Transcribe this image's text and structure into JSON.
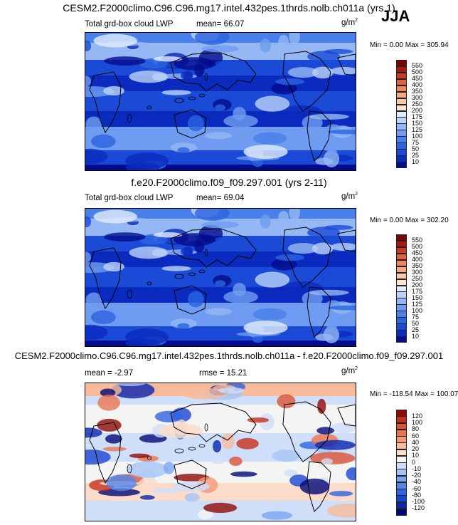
{
  "season": "JJA",
  "panels": [
    {
      "title": "CESM2.F2000climo.C96.C96.mg17.intel.432pes.1thrds.nolb.ch011a (yrs 1)",
      "field_label": "Total grd-box cloud LWP",
      "stat_text": "mean=  66.07",
      "stat2_text": "",
      "units": "g/m",
      "units_exp": "2",
      "minmax": "Min =   0.00 Max = 305.94"
    },
    {
      "title": "f.e20.F2000climo.f09_f09.297.001 (yrs 2-11)",
      "field_label": "Total grd-box cloud LWP",
      "stat_text": "mean=  69.04",
      "stat2_text": "",
      "units": "g/m",
      "units_exp": "2",
      "minmax": "Min =   0.00 Max = 302.20"
    },
    {
      "title": "CESM2.F2000climo.C96.C96.mg17.intel.432pes.1thrds.nolb.ch011a - f.e20.F2000climo.f09_f09.297.001",
      "field_label": "",
      "stat_text": "mean =  -2.97",
      "stat2_text": "rmse =  15.21",
      "units": "g/m",
      "units_exp": "2",
      "minmax": "Min = -118.54 Max = 100.07"
    }
  ],
  "chart_data": [
    {
      "type": "heatmap",
      "title": "CESM2.F2000climo.C96.C96.mg17.intel.432pes.1thrds.nolb.ch011a (yrs 1)",
      "variable": "Total grd-box cloud LWP",
      "units": "g/m2",
      "mean": 66.07,
      "min": 0.0,
      "max": 305.94,
      "colorbar_levels": [
        10,
        25,
        50,
        75,
        100,
        125,
        150,
        175,
        200,
        250,
        300,
        350,
        400,
        450,
        500,
        550
      ],
      "colorbar_colors": [
        "#040b8c",
        "#0a2bbd",
        "#1a4ad6",
        "#2c64e0",
        "#4a80ea",
        "#6f9cf0",
        "#95b8f4",
        "#bcd2f8",
        "#e2ecfb",
        "#fbe3d2",
        "#f9c9ad",
        "#f6a984",
        "#ee8660",
        "#e0613f",
        "#c93a22",
        "#a91910",
        "#7e0303"
      ]
    },
    {
      "type": "heatmap",
      "title": "f.e20.F2000climo.f09_f09.297.001 (yrs 2-11)",
      "variable": "Total grd-box cloud LWP",
      "units": "g/m2",
      "mean": 69.04,
      "min": 0.0,
      "max": 302.2,
      "colorbar_levels": [
        10,
        25,
        50,
        75,
        100,
        125,
        150,
        175,
        200,
        250,
        300,
        350,
        400,
        450,
        500,
        550
      ],
      "colorbar_colors": [
        "#040b8c",
        "#0a2bbd",
        "#1a4ad6",
        "#2c64e0",
        "#4a80ea",
        "#6f9cf0",
        "#95b8f4",
        "#bcd2f8",
        "#e2ecfb",
        "#fbe3d2",
        "#f9c9ad",
        "#f6a984",
        "#ee8660",
        "#e0613f",
        "#c93a22",
        "#a91910",
        "#7e0303"
      ]
    },
    {
      "type": "heatmap",
      "title": "CESM2.F2000climo.C96.C96.mg17.intel.432pes.1thrds.nolb.ch011a - f.e20.F2000climo.f09_f09.297.001",
      "units": "g/m2",
      "mean": -2.97,
      "rmse": 15.21,
      "min": -118.54,
      "max": 100.07,
      "colorbar_levels": [
        -120,
        -100,
        -80,
        -60,
        -40,
        -20,
        -10,
        0,
        10,
        20,
        40,
        60,
        80,
        100,
        120
      ],
      "colorbar_colors": [
        "#030875",
        "#0a24b0",
        "#1a45d2",
        "#3064e0",
        "#5386ea",
        "#7aa6f1",
        "#a5c4f6",
        "#cfdffa",
        "#f4f4f4",
        "#fbdccb",
        "#f7bb9c",
        "#f29a74",
        "#e97550",
        "#db5234",
        "#c5301c",
        "#8e0a06"
      ]
    }
  ]
}
